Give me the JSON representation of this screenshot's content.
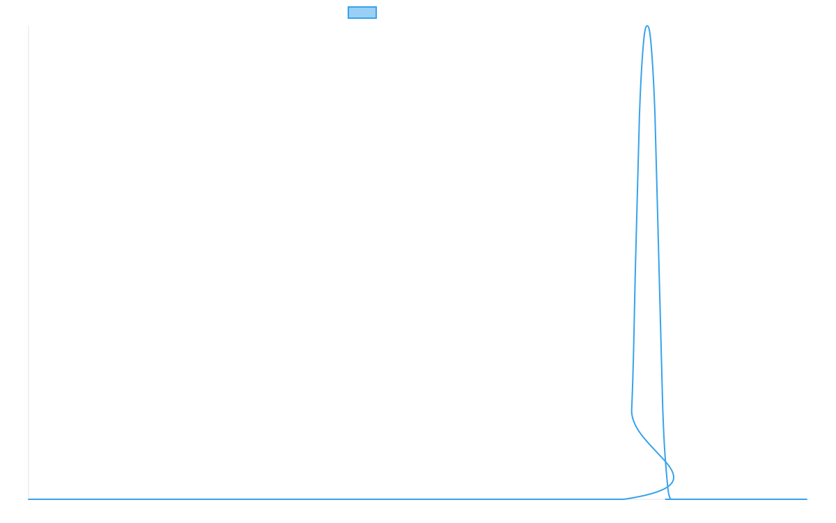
{
  "chart_data": {
    "type": "line",
    "title": "",
    "xlabel": "",
    "ylabel": "",
    "grid": false,
    "legend_position": "top",
    "xlim": [
      0,
      100
    ],
    "ylim": [
      0,
      1
    ],
    "series": [
      {
        "name": "",
        "color": "#36a2eb",
        "fill_color": "#9ad0f5",
        "x": [
          0,
          76.5,
          77.5,
          78,
          78.5,
          79,
          79.5,
          80,
          80.5,
          81,
          81.5,
          82,
          82.5,
          83.5,
          100
        ],
        "y": [
          0,
          0,
          0.19,
          0.5,
          0.81,
          0.96,
          1.0,
          0.96,
          0.81,
          0.5,
          0.19,
          0.05,
          0,
          0,
          0
        ]
      }
    ]
  }
}
